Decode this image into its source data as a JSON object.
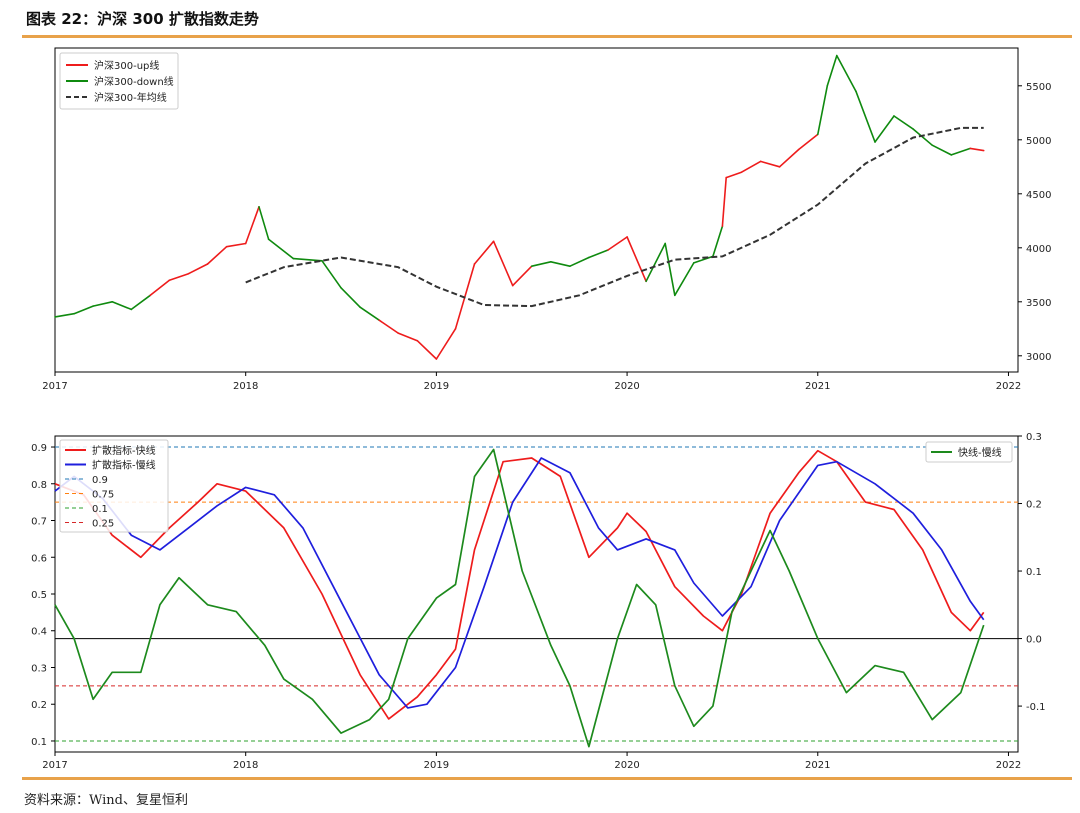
{
  "header": {
    "title": "图表 22：沪深 300 扩散指数走势"
  },
  "footer": {
    "source": "资料来源：Wind、复星恒利"
  },
  "chart_data": [
    {
      "type": "line",
      "x_ticks": [
        "2017",
        "2018",
        "2019",
        "2020",
        "2021",
        "2022"
      ],
      "xlim": [
        2017.0,
        2022.05
      ],
      "y_ticks": [
        3000,
        3500,
        4000,
        4500,
        5000,
        5500
      ],
      "ylim": [
        2850,
        5850
      ],
      "y_axis_side": "right",
      "legend": {
        "position": "top-left",
        "entries": [
          "沪深300-up线",
          "沪深300-down线",
          "沪深300-年均线"
        ]
      },
      "colors": {
        "up": "#ee1c1c",
        "down": "#0f8a0f",
        "ma": "#333333"
      },
      "price_series": {
        "name_up": "沪深300-up线",
        "name_down": "沪深300-down线",
        "points": [
          [
            2017.0,
            3360,
            "up"
          ],
          [
            2017.1,
            3390,
            "down"
          ],
          [
            2017.2,
            3460,
            "down"
          ],
          [
            2017.3,
            3500,
            "down"
          ],
          [
            2017.4,
            3430,
            "down"
          ],
          [
            2017.5,
            3560,
            "down"
          ],
          [
            2017.6,
            3700,
            "up"
          ],
          [
            2017.7,
            3760,
            "up"
          ],
          [
            2017.8,
            3850,
            "up"
          ],
          [
            2017.9,
            4010,
            "up"
          ],
          [
            2018.0,
            4040,
            "up"
          ],
          [
            2018.07,
            4380,
            "up"
          ],
          [
            2018.12,
            4080,
            "down"
          ],
          [
            2018.25,
            3900,
            "down"
          ],
          [
            2018.4,
            3880,
            "down"
          ],
          [
            2018.5,
            3630,
            "down"
          ],
          [
            2018.6,
            3450,
            "down"
          ],
          [
            2018.7,
            3330,
            "down"
          ],
          [
            2018.8,
            3210,
            "up"
          ],
          [
            2018.9,
            3140,
            "up"
          ],
          [
            2019.0,
            2970,
            "up"
          ],
          [
            2019.1,
            3250,
            "up"
          ],
          [
            2019.2,
            3850,
            "up"
          ],
          [
            2019.3,
            4060,
            "up"
          ],
          [
            2019.4,
            3650,
            "up"
          ],
          [
            2019.5,
            3830,
            "up"
          ],
          [
            2019.6,
            3870,
            "down"
          ],
          [
            2019.7,
            3830,
            "down"
          ],
          [
            2019.8,
            3910,
            "down"
          ],
          [
            2019.9,
            3980,
            "down"
          ],
          [
            2020.0,
            4100,
            "up"
          ],
          [
            2020.1,
            3690,
            "up"
          ],
          [
            2020.2,
            4040,
            "down"
          ],
          [
            2020.25,
            3560,
            "down"
          ],
          [
            2020.35,
            3860,
            "down"
          ],
          [
            2020.45,
            3920,
            "down"
          ],
          [
            2020.5,
            4200,
            "down"
          ],
          [
            2020.52,
            4650,
            "up"
          ],
          [
            2020.6,
            4700,
            "up"
          ],
          [
            2020.7,
            4800,
            "up"
          ],
          [
            2020.8,
            4750,
            "up"
          ],
          [
            2020.9,
            4910,
            "up"
          ],
          [
            2021.0,
            5050,
            "up"
          ],
          [
            2021.05,
            5500,
            "down"
          ],
          [
            2021.1,
            5780,
            "down"
          ],
          [
            2021.2,
            5450,
            "down"
          ],
          [
            2021.3,
            4980,
            "down"
          ],
          [
            2021.4,
            5220,
            "down"
          ],
          [
            2021.5,
            5100,
            "down"
          ],
          [
            2021.6,
            4950,
            "down"
          ],
          [
            2021.7,
            4860,
            "down"
          ],
          [
            2021.8,
            4920,
            "down"
          ],
          [
            2021.87,
            4900,
            "up"
          ]
        ]
      },
      "ma_series": {
        "name": "沪深300-年均线",
        "points": [
          [
            2018.0,
            3680
          ],
          [
            2018.2,
            3820
          ],
          [
            2018.5,
            3910
          ],
          [
            2018.8,
            3820
          ],
          [
            2019.0,
            3640
          ],
          [
            2019.25,
            3470
          ],
          [
            2019.5,
            3460
          ],
          [
            2019.75,
            3560
          ],
          [
            2020.0,
            3740
          ],
          [
            2020.25,
            3890
          ],
          [
            2020.5,
            3920
          ],
          [
            2020.75,
            4120
          ],
          [
            2021.0,
            4400
          ],
          [
            2021.25,
            4780
          ],
          [
            2021.5,
            5020
          ],
          [
            2021.75,
            5110
          ],
          [
            2021.87,
            5110
          ]
        ]
      }
    },
    {
      "type": "line",
      "x_ticks": [
        "2017",
        "2018",
        "2019",
        "2020",
        "2021",
        "2022"
      ],
      "xlim": [
        2017.0,
        2022.05
      ],
      "y_ticks_left": [
        0.1,
        0.2,
        0.3,
        0.4,
        0.5,
        0.6,
        0.7,
        0.8,
        0.9
      ],
      "ylim_left": [
        0.07,
        0.93
      ],
      "y_ticks_right": [
        -0.1,
        0.0,
        0.1,
        0.2,
        0.3
      ],
      "ylim_right": [
        -0.168,
        0.3
      ],
      "legend_left": {
        "position": "top-left",
        "entries": [
          "扩散指标-快线",
          "扩散指标-慢线",
          "0.9",
          "0.75",
          "0.1",
          "0.25"
        ]
      },
      "legend_right": {
        "position": "top-right",
        "entries": [
          "快线-慢线"
        ]
      },
      "reference_lines": [
        {
          "label": "0.9",
          "value": 0.9,
          "color": "#1f77b4",
          "dashed": true
        },
        {
          "label": "0.75",
          "value": 0.75,
          "color": "#ff7f0e",
          "dashed": true
        },
        {
          "label": "0.1",
          "value": 0.1,
          "color": "#2ca02c",
          "dashed": true
        },
        {
          "label": "0.25",
          "value": 0.25,
          "color": "#d62728",
          "dashed": true
        }
      ],
      "zero_line_right": 0.0,
      "series": [
        {
          "name": "扩散指标-快线",
          "axis": "left",
          "color": "#ee1c1c",
          "points": [
            [
              2017.0,
              0.8
            ],
            [
              2017.15,
              0.77
            ],
            [
              2017.3,
              0.66
            ],
            [
              2017.45,
              0.6
            ],
            [
              2017.6,
              0.68
            ],
            [
              2017.75,
              0.75
            ],
            [
              2017.85,
              0.8
            ],
            [
              2018.0,
              0.78
            ],
            [
              2018.2,
              0.68
            ],
            [
              2018.4,
              0.5
            ],
            [
              2018.6,
              0.28
            ],
            [
              2018.75,
              0.16
            ],
            [
              2018.9,
              0.22
            ],
            [
              2019.0,
              0.28
            ],
            [
              2019.1,
              0.35
            ],
            [
              2019.2,
              0.62
            ],
            [
              2019.35,
              0.86
            ],
            [
              2019.5,
              0.87
            ],
            [
              2019.65,
              0.82
            ],
            [
              2019.8,
              0.6
            ],
            [
              2019.95,
              0.68
            ],
            [
              2020.0,
              0.72
            ],
            [
              2020.1,
              0.67
            ],
            [
              2020.25,
              0.52
            ],
            [
              2020.4,
              0.44
            ],
            [
              2020.5,
              0.4
            ],
            [
              2020.6,
              0.5
            ],
            [
              2020.75,
              0.72
            ],
            [
              2020.9,
              0.83
            ],
            [
              2021.0,
              0.89
            ],
            [
              2021.1,
              0.86
            ],
            [
              2021.25,
              0.75
            ],
            [
              2021.4,
              0.73
            ],
            [
              2021.55,
              0.62
            ],
            [
              2021.7,
              0.45
            ],
            [
              2021.8,
              0.4
            ],
            [
              2021.87,
              0.45
            ]
          ]
        },
        {
          "name": "扩散指标-慢线",
          "axis": "left",
          "color": "#1f1fdd",
          "points": [
            [
              2017.0,
              0.78
            ],
            [
              2017.1,
              0.82
            ],
            [
              2017.25,
              0.76
            ],
            [
              2017.4,
              0.66
            ],
            [
              2017.55,
              0.62
            ],
            [
              2017.7,
              0.68
            ],
            [
              2017.85,
              0.74
            ],
            [
              2018.0,
              0.79
            ],
            [
              2018.15,
              0.77
            ],
            [
              2018.3,
              0.68
            ],
            [
              2018.5,
              0.48
            ],
            [
              2018.7,
              0.28
            ],
            [
              2018.85,
              0.19
            ],
            [
              2018.95,
              0.2
            ],
            [
              2019.1,
              0.3
            ],
            [
              2019.25,
              0.52
            ],
            [
              2019.4,
              0.75
            ],
            [
              2019.55,
              0.87
            ],
            [
              2019.7,
              0.83
            ],
            [
              2019.85,
              0.68
            ],
            [
              2019.95,
              0.62
            ],
            [
              2020.1,
              0.65
            ],
            [
              2020.25,
              0.62
            ],
            [
              2020.35,
              0.53
            ],
            [
              2020.5,
              0.44
            ],
            [
              2020.65,
              0.52
            ],
            [
              2020.8,
              0.7
            ],
            [
              2021.0,
              0.85
            ],
            [
              2021.1,
              0.86
            ],
            [
              2021.3,
              0.8
            ],
            [
              2021.5,
              0.72
            ],
            [
              2021.65,
              0.62
            ],
            [
              2021.8,
              0.48
            ],
            [
              2021.87,
              0.43
            ]
          ]
        },
        {
          "name": "快线-慢线",
          "axis": "right",
          "color": "#1d8a1d",
          "points": [
            [
              2017.0,
              0.05
            ],
            [
              2017.1,
              0.0
            ],
            [
              2017.2,
              -0.09
            ],
            [
              2017.3,
              -0.05
            ],
            [
              2017.45,
              -0.05
            ],
            [
              2017.55,
              0.05
            ],
            [
              2017.65,
              0.09
            ],
            [
              2017.8,
              0.05
            ],
            [
              2017.95,
              0.04
            ],
            [
              2018.1,
              -0.01
            ],
            [
              2018.2,
              -0.06
            ],
            [
              2018.35,
              -0.09
            ],
            [
              2018.5,
              -0.14
            ],
            [
              2018.65,
              -0.12
            ],
            [
              2018.75,
              -0.09
            ],
            [
              2018.85,
              0.0
            ],
            [
              2019.0,
              0.06
            ],
            [
              2019.1,
              0.08
            ],
            [
              2019.2,
              0.24
            ],
            [
              2019.3,
              0.28
            ],
            [
              2019.45,
              0.1
            ],
            [
              2019.6,
              -0.01
            ],
            [
              2019.7,
              -0.07
            ],
            [
              2019.8,
              -0.16
            ],
            [
              2019.95,
              0.0
            ],
            [
              2020.05,
              0.08
            ],
            [
              2020.15,
              0.05
            ],
            [
              2020.25,
              -0.07
            ],
            [
              2020.35,
              -0.13
            ],
            [
              2020.45,
              -0.1
            ],
            [
              2020.55,
              0.04
            ],
            [
              2020.65,
              0.1
            ],
            [
              2020.75,
              0.16
            ],
            [
              2020.85,
              0.1
            ],
            [
              2021.0,
              0.0
            ],
            [
              2021.15,
              -0.08
            ],
            [
              2021.3,
              -0.04
            ],
            [
              2021.45,
              -0.05
            ],
            [
              2021.6,
              -0.12
            ],
            [
              2021.75,
              -0.08
            ],
            [
              2021.87,
              0.02
            ]
          ]
        }
      ]
    }
  ]
}
